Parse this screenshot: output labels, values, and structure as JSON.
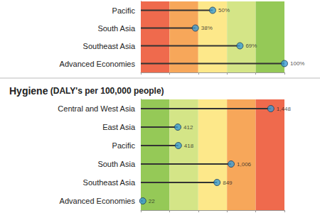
{
  "chart_data": [
    {
      "type": "bar",
      "orientation": "horizontal",
      "marker": "circle",
      "data_labels": true,
      "categories": [
        "Pacific",
        "South Asia",
        "Southeast Asia",
        "Advanced Economies"
      ],
      "values": [
        50,
        38,
        69,
        100
      ],
      "value_labels": [
        "50%",
        "38%",
        "69%",
        "100%"
      ],
      "color": "#3a9bd5",
      "xlim": [
        0,
        100
      ],
      "xticks": [
        0,
        20,
        40,
        60,
        80,
        100
      ],
      "tick_labels": "y",
      "bands": [
        {
          "from": 0,
          "to": 20,
          "color": "#ef6a4d"
        },
        {
          "from": 20,
          "to": 40,
          "color": "#f7a75a"
        },
        {
          "from": 40,
          "to": 60,
          "color": "#fde88a"
        },
        {
          "from": 60,
          "to": 80,
          "color": "#d4e587"
        },
        {
          "from": 80,
          "to": 100,
          "color": "#95c957"
        }
      ]
    },
    {
      "type": "bar",
      "orientation": "horizontal",
      "marker": "circle",
      "data_labels": true,
      "title": "Hygiene (DALY's per 100,000 people)",
      "categories": [
        "Central and West Asia",
        "East Asia",
        "Pacific",
        "South Asia",
        "Southeast Asia",
        "Advanced Economies"
      ],
      "values": [
        1448,
        412,
        418,
        1006,
        849,
        22
      ],
      "value_labels": [
        "1,448",
        "412",
        "418",
        "1,006",
        "849",
        "22"
      ],
      "color": "#3a9bd5",
      "xlim": [
        0,
        1600
      ],
      "xticks": [
        0,
        320,
        640,
        960,
        1280,
        1600
      ],
      "tick_labels": "y",
      "bands": [
        {
          "from": 0,
          "to": 320,
          "color": "#95c957"
        },
        {
          "from": 320,
          "to": 640,
          "color": "#d4e587"
        },
        {
          "from": 640,
          "to": 960,
          "color": "#fde88a"
        },
        {
          "from": 960,
          "to": 1280,
          "color": "#f7a75a"
        },
        {
          "from": 1280,
          "to": 1600,
          "color": "#ef6a4d"
        }
      ]
    }
  ]
}
